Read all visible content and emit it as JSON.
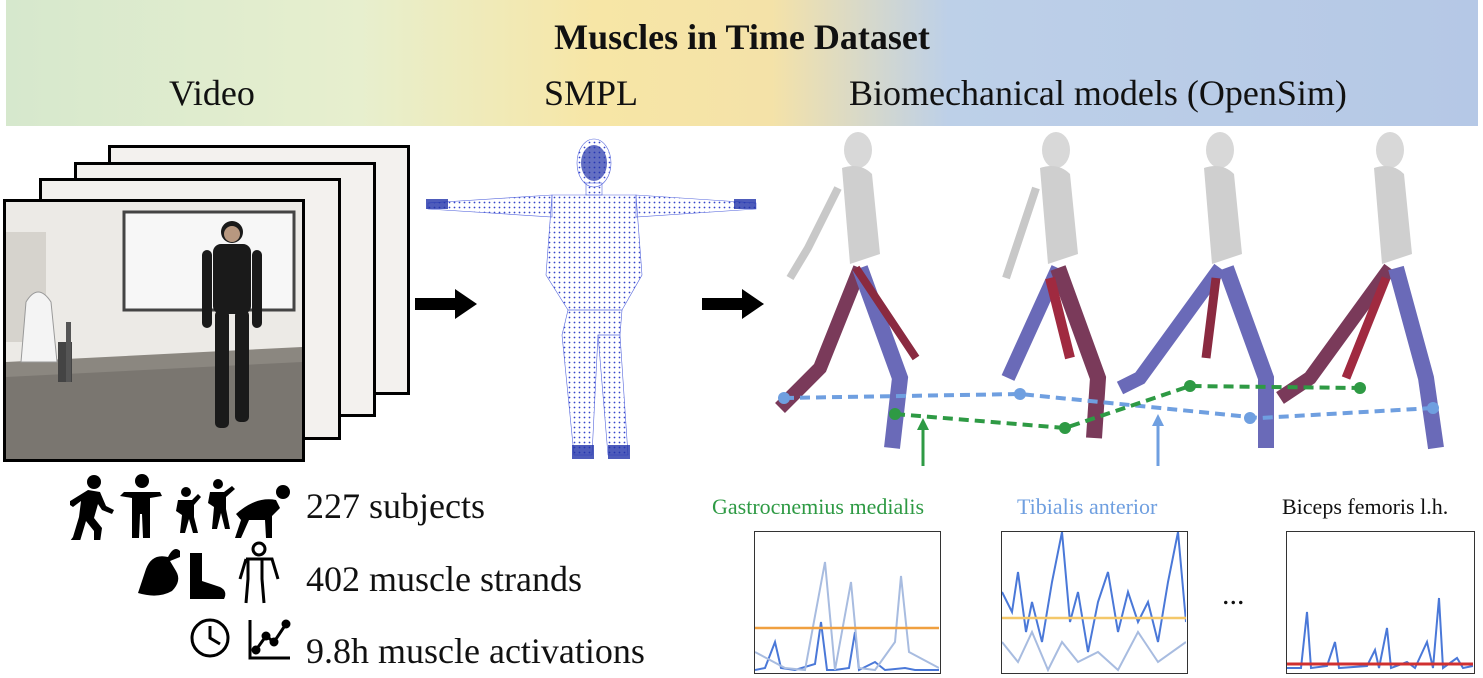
{
  "header": {
    "title": "Muscles in Time Dataset",
    "labels": [
      "Video",
      "SMPL",
      "Biomechanical models (OpenSim)"
    ]
  },
  "stats": [
    {
      "text": "227 subjects",
      "icons": [
        "running-person-icon",
        "standing-person-icon",
        "dancing-people-icon",
        "crawling-person-icon"
      ]
    },
    {
      "text": "402 muscle strands",
      "icons": [
        "flexed-bicep-icon",
        "foot-icon",
        "body-outline-icon"
      ]
    },
    {
      "text": "9.8h muscle activations",
      "icons": [
        "clock-icon",
        "line-graph-icon"
      ]
    }
  ],
  "muscles": [
    {
      "name": "Gastrocnemius medialis",
      "color": "#2e9a44"
    },
    {
      "name": "Tibialis anterior",
      "color": "#6f9fe0"
    },
    {
      "name": "Biceps femoris l.h.",
      "color": "#111111"
    }
  ],
  "ellipsis": "...",
  "colors": {
    "gastrocnemius_line": "#2e9a44",
    "tibialis_line": "#6f9fe0",
    "activation_line": "#4a78d8",
    "threshold_orange": "#f0a040",
    "threshold_yellow": "#f4c86a",
    "threshold_red": "#d03030"
  }
}
